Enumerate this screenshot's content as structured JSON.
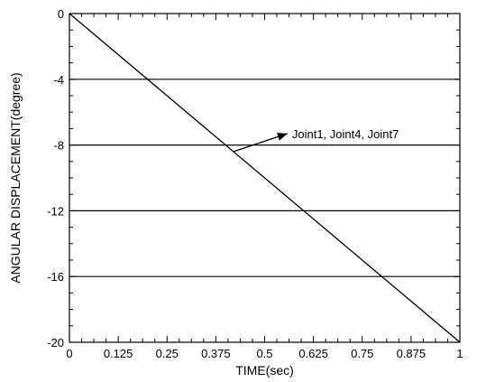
{
  "chart_data": {
    "type": "line",
    "title": "",
    "xlabel": "TIME(sec)",
    "ylabel": "ANGULAR DISPLACEMENT(degree)",
    "xlim": [
      0,
      1
    ],
    "ylim": [
      -20,
      0
    ],
    "x_ticks": [
      0,
      0.125,
      0.25,
      0.375,
      0.5,
      0.625,
      0.75,
      0.875,
      1
    ],
    "x_tick_labels": [
      "0",
      "0.125",
      "0.25",
      "0.375",
      "0.5",
      "0.625",
      "0.75",
      "0.875",
      "1"
    ],
    "y_ticks": [
      0,
      -4,
      -8,
      -12,
      -16,
      -20
    ],
    "y_tick_labels": [
      "0",
      "-4",
      "-8",
      "-12",
      "-16",
      "-20"
    ],
    "grid": "horizontal",
    "series": [
      {
        "x": [
          0,
          1
        ],
        "y": [
          0,
          -20
        ],
        "color": "#000000"
      }
    ],
    "annotation": {
      "text": "Joint1,  Joint4,  Joint7",
      "arrow_points_to": {
        "x": 0.42,
        "y": -8.4
      }
    }
  }
}
